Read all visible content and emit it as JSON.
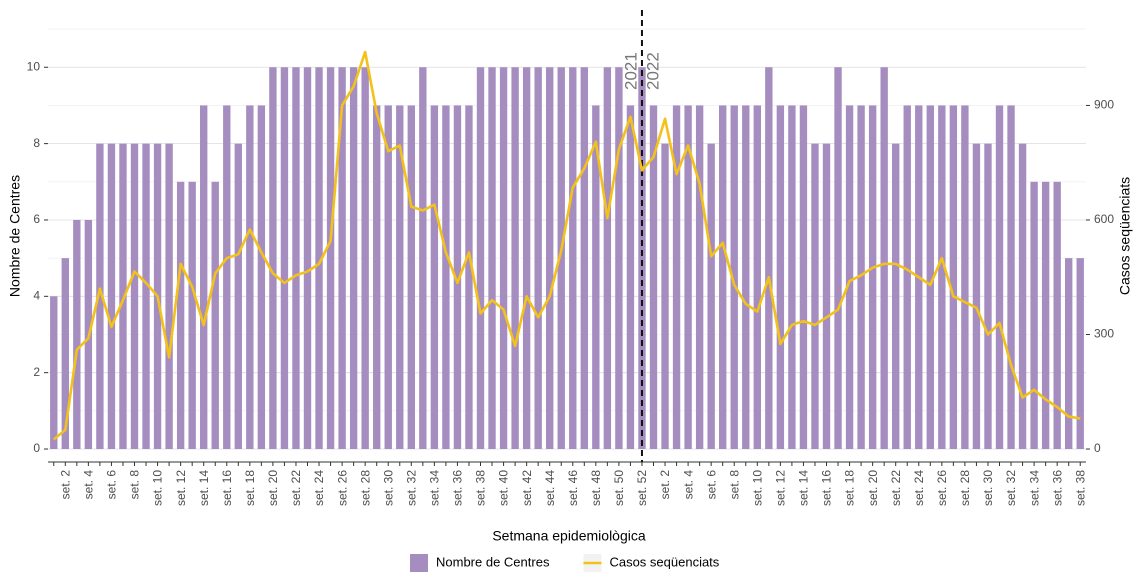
{
  "chart_data": {
    "type": "bar",
    "x_label": "Setmana epidemiològica",
    "y_label": "Nombre de Centres",
    "y2_label": "Casos seqüenciats",
    "categories": [
      null,
      "set. 2",
      null,
      "set. 4",
      null,
      "set. 6",
      null,
      "set. 8",
      null,
      "set. 10",
      null,
      "set. 12",
      null,
      "set. 14",
      null,
      "set. 16",
      null,
      "set. 18",
      null,
      "set. 20",
      null,
      "set. 22",
      null,
      "set. 24",
      null,
      "set. 26",
      null,
      "set. 28",
      null,
      "set. 30",
      null,
      "set. 32",
      null,
      "set. 34",
      null,
      "set. 36",
      null,
      "set. 38",
      null,
      "set. 40",
      null,
      "set. 42",
      null,
      "set. 44",
      null,
      "set. 46",
      null,
      "set. 48",
      null,
      "set. 50",
      null,
      "set. 52",
      null,
      "set. 2",
      null,
      "set. 4",
      null,
      "set. 6",
      null,
      "set. 8",
      null,
      "set. 10",
      null,
      "set. 12",
      null,
      "set. 14",
      null,
      "set. 16",
      null,
      "set. 18",
      null,
      "set. 20",
      null,
      "set. 22",
      null,
      "set. 24",
      null,
      "set. 26",
      null,
      "set. 28",
      null,
      "set. 30",
      null,
      "set. 32",
      null,
      "set. 34",
      null,
      "set. 36",
      null,
      "set. 38"
    ],
    "series": [
      {
        "name": "Nombre de Centres",
        "type": "bar",
        "color": "#a68dc0",
        "values": [
          4,
          5,
          6,
          6,
          8,
          8,
          8,
          8,
          8,
          8,
          8,
          7,
          7,
          9,
          7,
          9,
          8,
          9,
          9,
          10,
          10,
          10,
          10,
          10,
          10,
          10,
          10,
          10,
          9,
          9,
          9,
          9,
          10,
          9,
          9,
          9,
          9,
          10,
          10,
          10,
          10,
          10,
          10,
          10,
          10,
          10,
          10,
          9,
          10,
          10,
          9,
          10,
          9,
          8,
          9,
          9,
          9,
          8,
          9,
          9,
          9,
          9,
          10,
          9,
          9,
          9,
          8,
          8,
          10,
          9,
          9,
          9,
          10,
          8,
          9,
          9,
          9,
          9,
          9,
          9,
          8,
          8,
          9,
          9,
          8,
          7,
          7,
          7,
          5,
          5
        ]
      },
      {
        "name": "Casos seqüenciats",
        "type": "line",
        "axis": "y2",
        "color": "#f2c21b",
        "values": [
          25,
          50,
          260,
          290,
          420,
          320,
          390,
          465,
          435,
          400,
          240,
          485,
          425,
          325,
          460,
          500,
          510,
          575,
          515,
          460,
          435,
          455,
          465,
          485,
          545,
          900,
          950,
          1040,
          880,
          780,
          795,
          635,
          625,
          640,
          515,
          435,
          515,
          355,
          390,
          365,
          270,
          400,
          345,
          400,
          520,
          685,
          735,
          805,
          605,
          785,
          870,
          730,
          765,
          865,
          720,
          795,
          695,
          505,
          540,
          430,
          380,
          360,
          450,
          275,
          325,
          335,
          325,
          345,
          365,
          440,
          455,
          475,
          485,
          485,
          470,
          450,
          430,
          500,
          400,
          385,
          370,
          300,
          330,
          220,
          135,
          155,
          130,
          110,
          85,
          80
        ]
      }
    ],
    "ylim": [
      -0.34,
      11.5
    ],
    "yticks": [
      0,
      2,
      4,
      6,
      8,
      10
    ],
    "y2lim": [
      -34,
      1150
    ],
    "y2ticks": [
      0,
      300,
      600,
      900
    ],
    "grid": true,
    "divider": {
      "category": "set. 52",
      "labels": [
        "2021",
        "2022"
      ]
    },
    "legend": "bottom"
  }
}
